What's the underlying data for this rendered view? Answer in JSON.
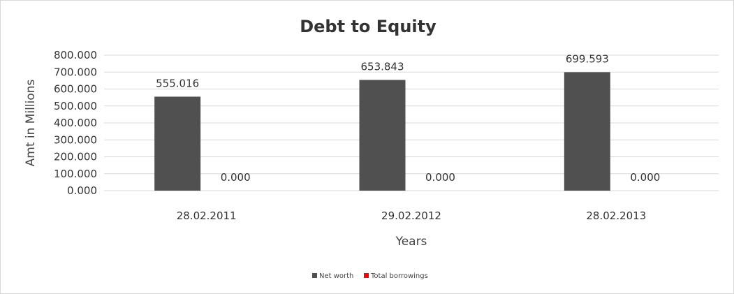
{
  "chart_data": {
    "type": "bar",
    "title": "Debt to Equity",
    "xlabel": "Years",
    "ylabel": "Amt in Millions",
    "categories": [
      "28.02.2011",
      "29.02.2012",
      "28.02.2013"
    ],
    "series": [
      {
        "name": "Net worth",
        "values": [
          555.016,
          653.843,
          699.593
        ],
        "labels": [
          "555.016",
          "653.843",
          "699.593"
        ],
        "color": "#505050"
      },
      {
        "name": "Total borrowings",
        "values": [
          0,
          0,
          0
        ],
        "labels": [
          "0.000",
          "0.000",
          "0.000"
        ],
        "color": "#ff0000"
      }
    ],
    "ylim": [
      0,
      800
    ],
    "yticks": [
      "0.000",
      "100.000",
      "200.000",
      "300.000",
      "400.000",
      "500.000",
      "600.000",
      "700.000",
      "800.000"
    ],
    "grid": true,
    "legend": "bottom"
  }
}
